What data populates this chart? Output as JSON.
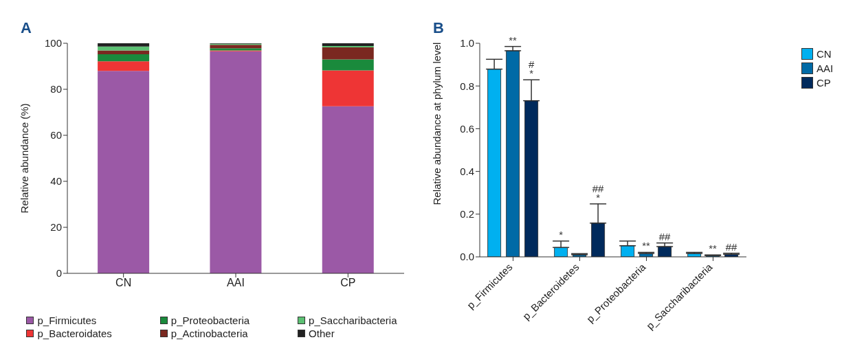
{
  "chart_data": [
    {
      "type": "bar",
      "title": "A",
      "categories": [
        "CN",
        "AAI",
        "CP"
      ],
      "stacked": true,
      "ylabel": "Relative abundance (%)",
      "ylim": [
        0,
        100
      ],
      "yticks": [
        0,
        20,
        40,
        60,
        80,
        100
      ],
      "legend": "bottom",
      "series": [
        {
          "name": "p_Firmicutes",
          "color": "#9b59a6",
          "values": [
            88,
            96.5,
            72.6
          ]
        },
        {
          "name": "p_Bacteroidates",
          "color": "#ee3535",
          "values": [
            4.2,
            0.4,
            15.6
          ]
        },
        {
          "name": "p_Proteobacteria",
          "color": "#1a8a3c",
          "values": [
            3,
            0.9,
            4.8
          ]
        },
        {
          "name": "p_Actinobacteria",
          "color": "#7a2820",
          "values": [
            1.7,
            1.5,
            5.2
          ]
        },
        {
          "name": "p_Saccharibacteria",
          "color": "#5cc073",
          "values": [
            1.7,
            0.5,
            0.6
          ]
        },
        {
          "name": "Other",
          "color": "#222222",
          "values": [
            1.4,
            0.2,
            1.2
          ]
        }
      ]
    },
    {
      "type": "bar",
      "title": "B",
      "categories": [
        "p_Firmicutes",
        "p_Bacteroidetes",
        "p_Proteobacteria",
        "p_Saccharibacteria"
      ],
      "ylabel": "Relative abundance at phylum level",
      "ylim": [
        0,
        1
      ],
      "yticks": [
        {
          "value": 0,
          "label": "0.0"
        },
        {
          "value": 0.2,
          "label": "0.2"
        },
        {
          "value": 0.4,
          "label": "0.4"
        },
        {
          "value": 0.6,
          "label": "0.6"
        },
        {
          "value": 0.8,
          "label": "0.8"
        },
        {
          "value": 1,
          "label": "1.0"
        }
      ],
      "legend": "top right",
      "series": [
        {
          "name": "CN",
          "color": "#00b0f0",
          "values": [
            0.879,
            0.044,
            0.052,
            0.016
          ],
          "errors": [
            0.046,
            0.03,
            0.022,
            0.005
          ],
          "value_labels": [
            null,
            "*",
            null,
            null
          ]
        },
        {
          "name": "AAI",
          "color": "#006aa6",
          "values": [
            0.965,
            0.01,
            0.016,
            0.006
          ],
          "errors": [
            0.02,
            0.005,
            0.005,
            0.003
          ],
          "value_labels": [
            "**",
            null,
            "**",
            "**"
          ]
        },
        {
          "name": "CP",
          "color": "#002a5c",
          "values": [
            0.731,
            0.158,
            0.048,
            0.012
          ],
          "errors": [
            0.098,
            0.09,
            0.017,
            0.005
          ],
          "value_labels": [
            "#\n*",
            "##\n*",
            "##",
            "##"
          ]
        }
      ]
    }
  ]
}
